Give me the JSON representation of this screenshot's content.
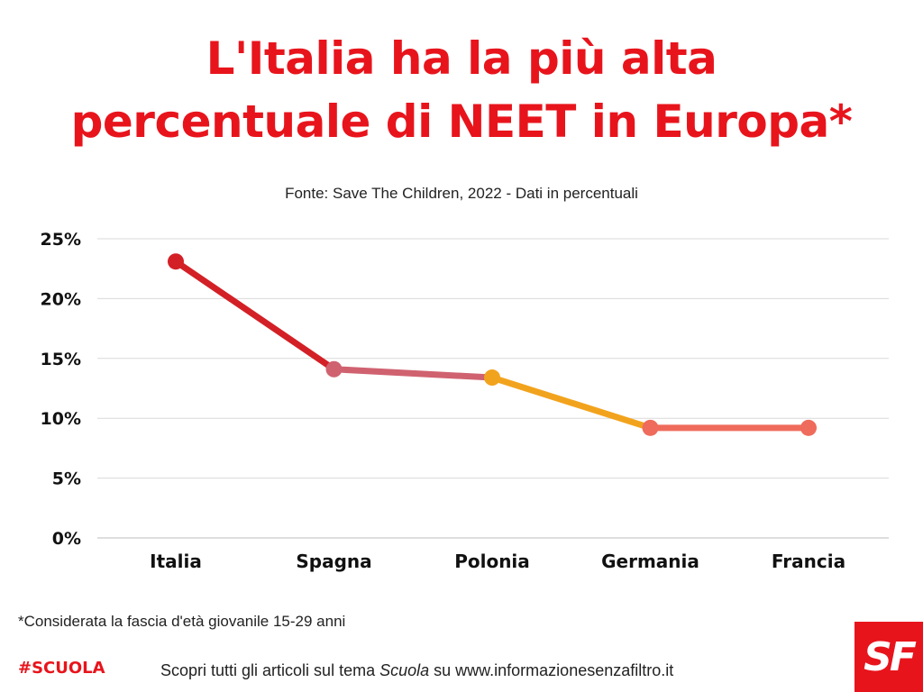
{
  "header": {
    "title_line1": "L'Italia ha la più alta",
    "title_line2": "percentuale di NEET in Europa*",
    "subtitle": "Fonte: Save The Children, 2022 -  Dati in percentuali"
  },
  "chart_data": {
    "type": "line",
    "categories": [
      "Italia",
      "Spagna",
      "Polonia",
      "Germania",
      "Francia"
    ],
    "values": [
      23.1,
      14.1,
      13.4,
      9.2,
      9.2
    ],
    "point_colors": [
      "#d32026",
      "#d06270",
      "#f2a31d",
      "#ef6b5c",
      "#ef6b5c"
    ],
    "y_ticks": [
      0,
      5,
      10,
      15,
      20,
      25
    ],
    "y_tick_labels": [
      "0%",
      "5%",
      "10%",
      "15%",
      "20%",
      "25%"
    ],
    "ylim": [
      0,
      25
    ],
    "grid": true,
    "xlabel": "",
    "ylabel": ""
  },
  "footer": {
    "footnote": "*Considerata la fascia d'età giovanile 15-29 anni",
    "hashtag": "#SCUOLA",
    "link_prefix": "Scopri tutti gli articoli sul tema ",
    "link_topic": "Scuola",
    "link_suffix": " su www.informazionesenzafiltro.it",
    "logo_text": "SF"
  },
  "colors": {
    "accent": "#e8141c",
    "grid": "#d9d9d9"
  }
}
